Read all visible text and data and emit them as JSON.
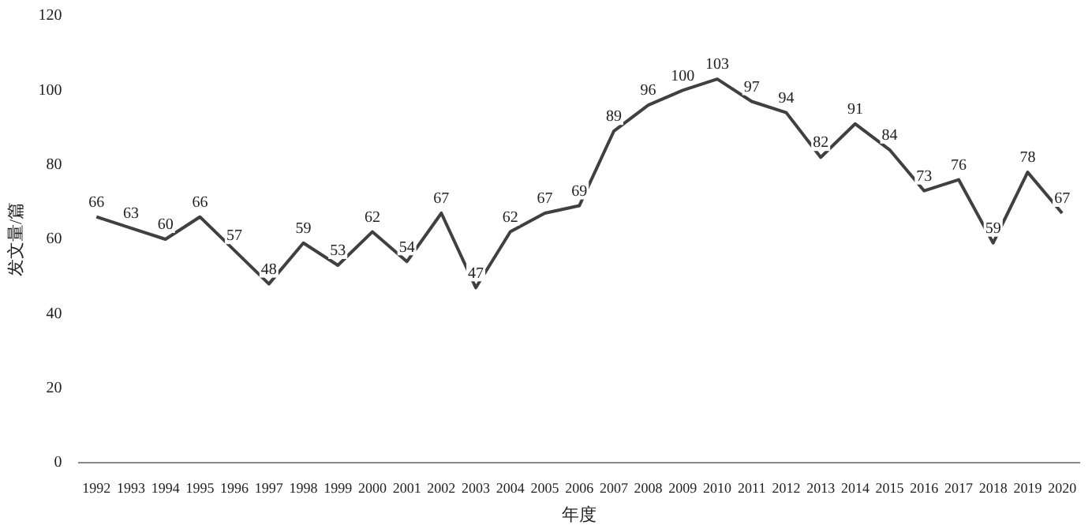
{
  "chart_data": {
    "type": "line",
    "xlabel": "年度",
    "ylabel": "发文量/篇",
    "categories": [
      "1992",
      "1993",
      "1994",
      "1995",
      "1996",
      "1997",
      "1998",
      "1999",
      "2000",
      "2001",
      "2002",
      "2003",
      "2004",
      "2005",
      "2006",
      "2007",
      "2008",
      "2009",
      "2010",
      "2011",
      "2012",
      "2013",
      "2014",
      "2015",
      "2016",
      "2017",
      "2018",
      "2019",
      "2020"
    ],
    "series": [
      {
        "color": "#404040",
        "values": [
          66,
          63,
          60,
          66,
          57,
          48,
          59,
          53,
          62,
          54,
          67,
          47,
          62,
          67,
          69,
          89,
          96,
          100,
          103,
          97,
          94,
          82,
          91,
          84,
          73,
          76,
          59,
          78,
          67
        ]
      }
    ],
    "ylim": [
      0,
      120
    ],
    "yticks": [
      0,
      20,
      40,
      60,
      80,
      100,
      120
    ],
    "grid": false,
    "legend": false,
    "marker": "none",
    "line_style": "solid",
    "data_labels": true
  }
}
